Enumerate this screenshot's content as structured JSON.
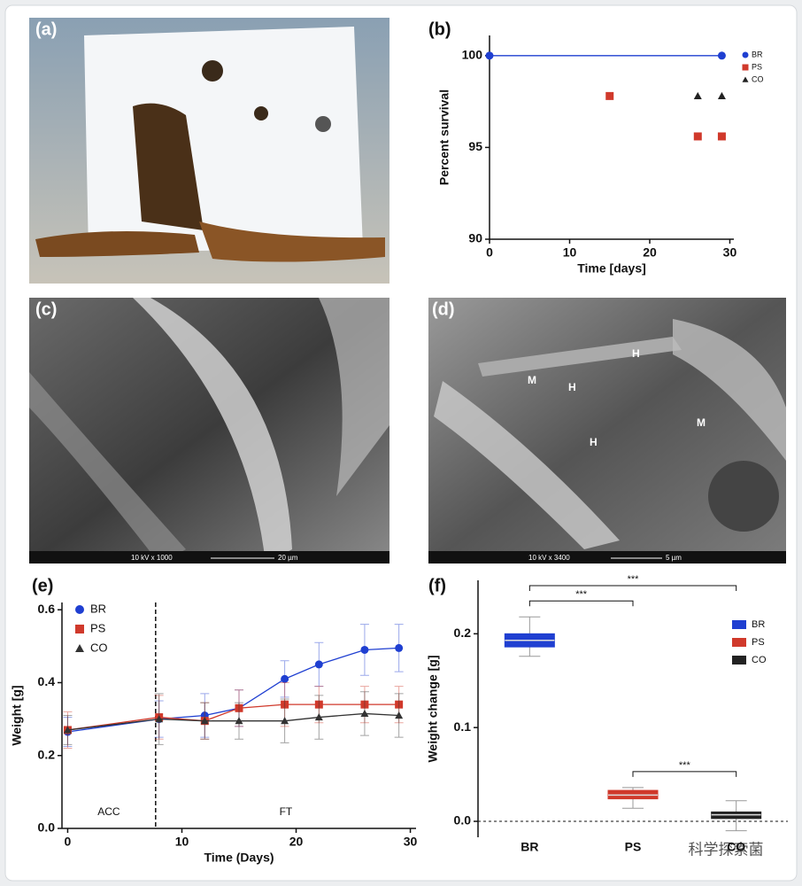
{
  "panels": {
    "a": "(a)",
    "b": "(b)",
    "c": "(c)",
    "d": "(d)",
    "e": "(e)",
    "f": "(f)"
  },
  "images": {
    "c": {
      "scale_text": "10 kV  x 1000",
      "bar_text": "20 µm"
    },
    "d": {
      "scale_text": "10 kV  x 3400",
      "bar_text": "5 µm",
      "labels": [
        "M",
        "H",
        "H",
        "H",
        "M"
      ]
    }
  },
  "watermark": "科学探索菌",
  "chart_data": [
    {
      "type": "line",
      "xlabel": "Time [days]",
      "ylabel": "Percent survival",
      "xlim": [
        0,
        30.5
      ],
      "xticks": [
        0,
        10,
        20,
        30
      ],
      "ylim": [
        90,
        101.1
      ],
      "yticks": [
        90,
        95,
        100
      ],
      "series": [
        {
          "name": "BR",
          "color": "#1f3fd1",
          "marker": "circle",
          "line": true,
          "x": [
            0,
            29
          ],
          "values": [
            100,
            100
          ]
        },
        {
          "name": "PS",
          "color": "#d0392b",
          "marker": "square",
          "line": false,
          "x": [
            15,
            26,
            29
          ],
          "values": [
            97.8,
            95.6,
            95.6
          ]
        },
        {
          "name": "CO",
          "color": "#222222",
          "marker": "triangle",
          "line": false,
          "x": [
            26,
            29
          ],
          "values": [
            97.8,
            97.8
          ]
        }
      ]
    },
    {
      "type": "line",
      "xlabel": "Time (Days)",
      "ylabel": "Weight [g]",
      "xlim": [
        -0.5,
        30.5
      ],
      "xticks": [
        0,
        10,
        20,
        30
      ],
      "ylim": [
        0,
        0.62
      ],
      "yticks": [
        {
          "value": 0,
          "label": "0.0"
        },
        0.2,
        0.4,
        0.6
      ],
      "divider": 7.7,
      "annotations": [
        "ACC",
        "FT"
      ],
      "series": [
        {
          "name": "BR",
          "color": "#1f3fd1",
          "marker": "circle",
          "line": true,
          "x": [
            0,
            8,
            12,
            15,
            19,
            22,
            26,
            29
          ],
          "values": [
            0.265,
            0.3,
            0.31,
            0.33,
            0.41,
            0.45,
            0.49,
            0.495
          ],
          "errors": [
            0.04,
            0.05,
            0.06,
            0.05,
            0.05,
            0.06,
            0.07,
            0.065
          ]
        },
        {
          "name": "PS",
          "color": "#d0392b",
          "marker": "square",
          "line": true,
          "x": [
            0,
            8,
            12,
            15,
            19,
            22,
            26,
            29
          ],
          "values": [
            0.27,
            0.305,
            0.295,
            0.33,
            0.34,
            0.34,
            0.34,
            0.34
          ],
          "errors": [
            0.05,
            0.06,
            0.05,
            0.05,
            0.06,
            0.05,
            0.05,
            0.05
          ]
        },
        {
          "name": "CO",
          "color": "#333333",
          "marker": "triangle",
          "line": true,
          "x": [
            0,
            8,
            12,
            15,
            19,
            22,
            26,
            29
          ],
          "values": [
            0.27,
            0.3,
            0.295,
            0.295,
            0.295,
            0.305,
            0.315,
            0.31
          ],
          "errors": [
            0.04,
            0.07,
            0.05,
            0.05,
            0.06,
            0.06,
            0.06,
            0.06
          ]
        }
      ]
    },
    {
      "type": "box",
      "ylabel": "Weight change [g]",
      "categories": [
        "BR",
        "PS",
        "CO"
      ],
      "colors": [
        "#1f3fd1",
        "#d0392b",
        "#222222"
      ],
      "ylim": [
        -0.017,
        0.257
      ],
      "yticks": [
        {
          "value": 0,
          "label": "0.0"
        },
        0.1,
        0.2
      ],
      "boxes": [
        {
          "min": 0.176,
          "q1": 0.186,
          "median": 0.193,
          "q3": 0.2,
          "max": 0.218
        },
        {
          "min": 0.014,
          "q1": 0.024,
          "median": 0.028,
          "q3": 0.033,
          "max": 0.036
        },
        {
          "min": -0.01,
          "q1": 0.003,
          "median": 0.007,
          "q3": 0.01,
          "max": 0.022
        }
      ],
      "significance": [
        {
          "from": 0,
          "to": 1,
          "label": "***"
        },
        {
          "from": 0,
          "to": 2,
          "label": "***"
        },
        {
          "from": 1,
          "to": 2,
          "label": "***"
        }
      ]
    }
  ]
}
